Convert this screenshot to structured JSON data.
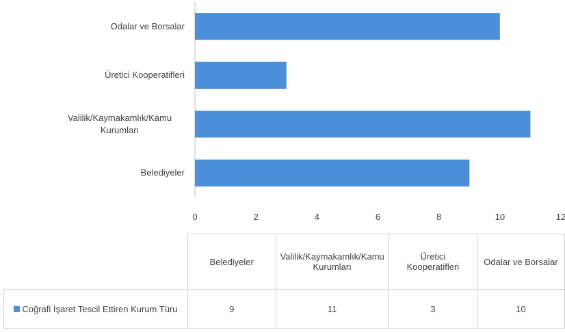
{
  "chart_data": {
    "type": "bar",
    "orientation": "horizontal",
    "categories": [
      "Belediyeler",
      "Valilik/Kaymakamlık/Kamu Kurumları",
      "Üretici Kooperatifleri",
      "Odalar ve Borsalar"
    ],
    "series": [
      {
        "name": "Coğrafi İşaret Tescil Ettiren Kurum Türu",
        "color": "#4a8fd8",
        "values": [
          9,
          11,
          3,
          10
        ]
      }
    ],
    "xlim": [
      0,
      12
    ],
    "xticks": [
      0,
      2,
      4,
      6,
      8,
      10,
      12
    ],
    "grid": false,
    "data_table": true
  }
}
